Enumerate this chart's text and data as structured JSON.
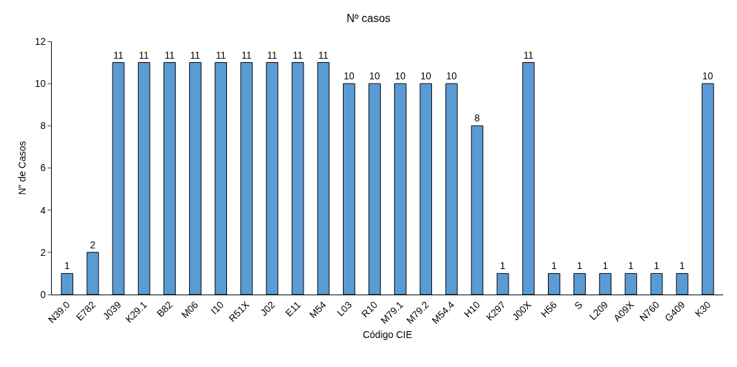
{
  "chart_data": {
    "type": "bar",
    "title": "Nº casos",
    "xlabel": "Código CIE",
    "ylabel": "N\" de Casos",
    "categories": [
      "N39.0",
      "E782",
      "J039",
      "K29.1",
      "B82",
      "M06",
      "I10",
      "R51X",
      "J02",
      "E11",
      "M54",
      "L03",
      "R10",
      "M79.1",
      "M79.2",
      "M54.4",
      "H10",
      "K297",
      "J00X",
      "H56",
      "S",
      "L209",
      "A09X",
      "N760",
      "G409",
      "K30"
    ],
    "values": [
      1,
      2,
      11,
      11,
      11,
      11,
      11,
      11,
      11,
      11,
      11,
      10,
      10,
      10,
      10,
      10,
      8,
      1,
      11,
      1,
      1,
      1,
      1,
      1,
      1,
      10
    ],
    "color": "#5b9bd5",
    "ylim": [
      0,
      12
    ],
    "yticks": [
      0,
      2,
      4,
      6,
      8,
      10,
      12
    ],
    "grid": false,
    "data_labels": true
  }
}
